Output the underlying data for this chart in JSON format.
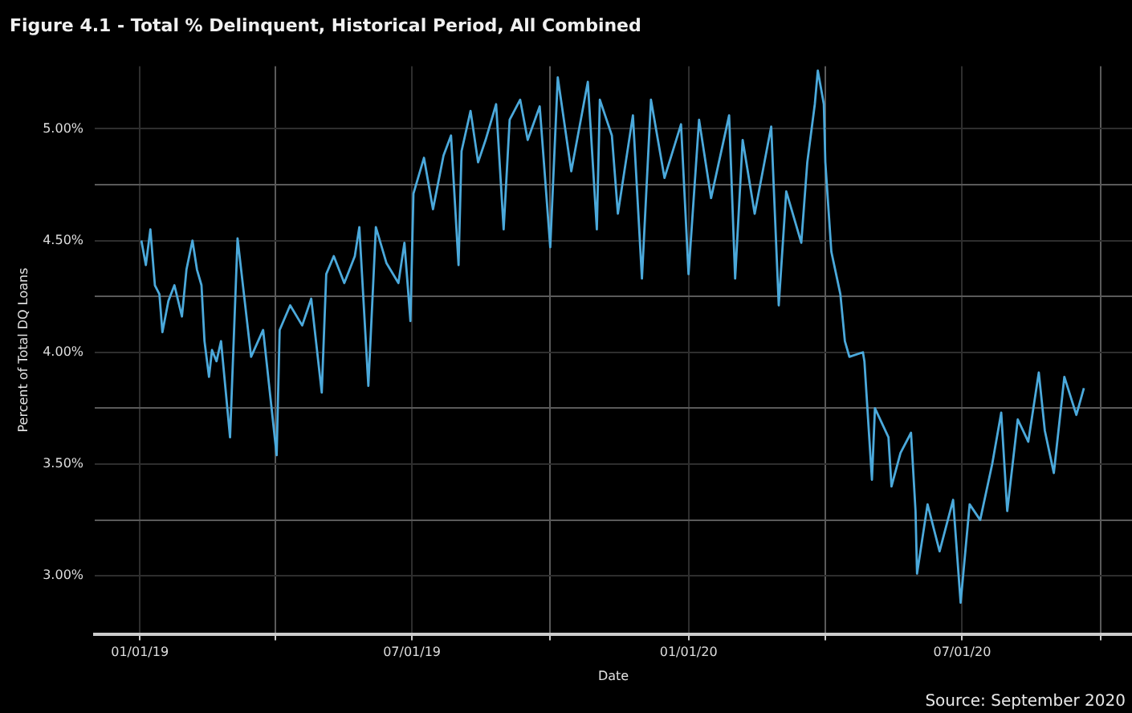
{
  "chart_data": {
    "type": "line",
    "title": "Figure 4.1 - Total % Delinquent, Historical Period, All Combined",
    "xlabel": "Date",
    "ylabel": "Percent of Total DQ Loans",
    "annotations": [
      "Source: September 2020"
    ],
    "x": [
      "2019-01-02",
      "2019-01-05",
      "2019-01-08",
      "2019-01-11",
      "2019-01-14",
      "2019-01-16",
      "2019-01-20",
      "2019-01-24",
      "2019-01-29",
      "2019-02-01",
      "2019-02-05",
      "2019-02-08",
      "2019-02-11",
      "2019-02-13",
      "2019-02-16",
      "2019-02-18",
      "2019-02-21",
      "2019-02-24",
      "2019-03-02",
      "2019-03-07",
      "2019-03-16",
      "2019-03-24",
      "2019-04-02",
      "2019-04-04",
      "2019-04-11",
      "2019-04-19",
      "2019-04-25",
      "2019-05-02",
      "2019-05-05",
      "2019-05-10",
      "2019-05-17",
      "2019-05-24",
      "2019-05-27",
      "2019-06-02",
      "2019-06-07",
      "2019-06-14",
      "2019-06-22",
      "2019-06-26",
      "2019-06-30",
      "2019-07-02",
      "2019-07-09",
      "2019-07-15",
      "2019-07-22",
      "2019-07-27",
      "2019-08-01",
      "2019-08-03",
      "2019-08-09",
      "2019-08-14",
      "2019-08-19",
      "2019-08-26",
      "2019-08-31",
      "2019-09-04",
      "2019-09-11",
      "2019-09-16",
      "2019-09-24",
      "2019-10-01",
      "2019-10-06",
      "2019-10-15",
      "2019-10-26",
      "2019-11-01",
      "2019-11-03",
      "2019-11-11",
      "2019-11-15",
      "2019-11-25",
      "2019-12-01",
      "2019-12-07",
      "2019-12-16",
      "2019-12-27",
      "2020-01-01",
      "2020-01-08",
      "2020-01-16",
      "2020-01-28",
      "2020-02-01",
      "2020-02-06",
      "2020-02-14",
      "2020-02-25",
      "2020-03-01",
      "2020-03-06",
      "2020-03-16",
      "2020-03-20",
      "2020-03-25",
      "2020-03-27",
      "2020-03-31",
      "2020-04-01",
      "2020-04-05",
      "2020-04-11",
      "2020-04-14",
      "2020-04-17",
      "2020-04-26",
      "2020-04-27",
      "2020-05-02",
      "2020-05-04",
      "2020-05-13",
      "2020-05-15",
      "2020-05-21",
      "2020-05-28",
      "2020-05-31",
      "2020-06-01",
      "2020-06-08",
      "2020-06-16",
      "2020-06-25",
      "2020-06-30",
      "2020-07-06",
      "2020-07-13",
      "2020-07-21",
      "2020-07-27",
      "2020-07-31",
      "2020-08-07",
      "2020-08-14",
      "2020-08-21",
      "2020-08-25",
      "2020-08-31",
      "2020-09-07",
      "2020-09-15",
      "2020-09-20"
    ],
    "series": [
      {
        "color": "#4ba9db",
        "values": [
          4.5,
          4.39,
          4.55,
          4.3,
          4.26,
          4.09,
          4.23,
          4.3,
          4.16,
          4.37,
          4.5,
          4.37,
          4.3,
          4.05,
          3.89,
          4.01,
          3.96,
          4.05,
          3.62,
          4.51,
          3.98,
          4.1,
          3.54,
          4.1,
          4.21,
          4.12,
          4.24,
          3.82,
          4.35,
          4.43,
          4.31,
          4.43,
          4.56,
          3.85,
          4.56,
          4.4,
          4.31,
          4.49,
          4.14,
          4.71,
          4.87,
          4.64,
          4.88,
          4.97,
          4.39,
          4.9,
          5.08,
          4.85,
          4.95,
          5.11,
          4.55,
          5.04,
          5.13,
          4.95,
          5.1,
          4.47,
          5.23,
          4.81,
          5.21,
          4.55,
          5.13,
          4.97,
          4.62,
          5.06,
          4.33,
          5.13,
          4.78,
          5.02,
          4.35,
          5.04,
          4.69,
          5.06,
          4.33,
          4.95,
          4.62,
          5.01,
          4.21,
          4.72,
          4.49,
          4.85,
          5.11,
          5.26,
          5.11,
          4.85,
          4.45,
          4.26,
          4.05,
          3.98,
          4.0,
          3.96,
          3.43,
          3.75,
          3.62,
          3.4,
          3.55,
          3.64,
          3.29,
          3.01,
          3.32,
          3.11,
          3.34,
          2.88,
          3.32,
          3.25,
          3.5,
          3.73,
          3.29,
          3.7,
          3.6,
          3.91,
          3.65,
          3.46,
          3.89,
          3.72,
          3.84
        ]
      }
    ],
    "xlim": [
      "2018-12-02",
      "2020-10-22"
    ],
    "xticks": [
      {
        "value": "2019-01-01",
        "label": "01/01/19"
      },
      {
        "value": "2019-04-01",
        "label": null
      },
      {
        "value": "2019-07-01",
        "label": "07/01/19"
      },
      {
        "value": "2019-10-01",
        "label": null
      },
      {
        "value": "2020-01-01",
        "label": "01/01/20"
      },
      {
        "value": "2020-04-01",
        "label": null
      },
      {
        "value": "2020-07-01",
        "label": "07/01/20"
      },
      {
        "value": "2020-10-01",
        "label": null
      }
    ],
    "ylim": [
      2.74,
      5.28
    ],
    "yticks": [
      {
        "value": 3,
        "label": "3.00%"
      },
      {
        "value": 3.25,
        "label": null
      },
      {
        "value": 3.5,
        "label": "3.50%"
      },
      {
        "value": 3.75,
        "label": null
      },
      {
        "value": 4,
        "label": "4.00%"
      },
      {
        "value": 4.25,
        "label": null
      },
      {
        "value": 4.5,
        "label": "4.50%"
      },
      {
        "value": 4.75,
        "label": null
      },
      {
        "value": 5,
        "label": "5.00%"
      }
    ],
    "grid": true,
    "marker": "none",
    "line_style": "solid"
  }
}
